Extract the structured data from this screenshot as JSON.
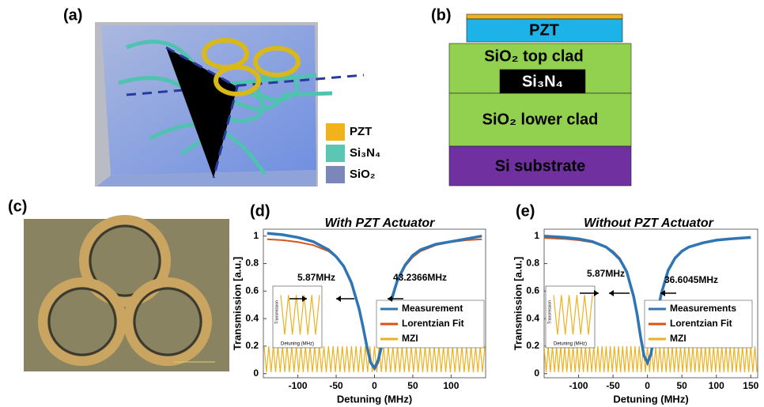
{
  "panels": {
    "a": {
      "label": "(a)",
      "legend": [
        "PZT",
        "Si₃N₄",
        "SiO₂"
      ]
    },
    "b": {
      "label": "(b)",
      "layers": [
        "PZT",
        "SiO₂ top clad",
        "Si₃N₄",
        "SiO₂ lower clad",
        "Si substrate"
      ]
    },
    "c": {
      "label": "(c)"
    }
  },
  "chart_data": [
    {
      "type": "line",
      "label": "(d)",
      "title": "With PZT Actuator",
      "xlabel": "Detuning (MHz)",
      "ylabel": "Transmission [a.u.]",
      "xlim": [
        -145,
        145
      ],
      "ylim": [
        -0.03,
        1.05
      ],
      "xticks": [
        -100,
        -50,
        0,
        50,
        100
      ],
      "yticks": [
        0,
        0.2,
        0.4,
        0.6,
        0.8,
        1
      ],
      "annotations": [
        "5.87MHz",
        "43.2366MHz"
      ],
      "series": [
        {
          "name": "Measurement",
          "color": "#2e75b6",
          "x": [
            -140,
            -120,
            -100,
            -80,
            -60,
            -50,
            -40,
            -30,
            -20,
            -15,
            -10,
            -5,
            0,
            5,
            10,
            15,
            20,
            30,
            40,
            50,
            60,
            80,
            100,
            120,
            140
          ],
          "values": [
            1.02,
            1.01,
            0.99,
            0.96,
            0.9,
            0.85,
            0.78,
            0.66,
            0.47,
            0.34,
            0.2,
            0.08,
            0.04,
            0.1,
            0.22,
            0.36,
            0.5,
            0.68,
            0.79,
            0.86,
            0.9,
            0.94,
            0.96,
            0.98,
            1.0
          ]
        },
        {
          "name": "Lorentzian Fit",
          "color": "#d95319",
          "x": [
            -140,
            -120,
            -100,
            -80,
            -60,
            -50,
            -40,
            -30,
            -20,
            -15,
            -10,
            -5,
            0,
            5,
            10,
            15,
            20,
            30,
            40,
            50,
            60,
            80,
            100,
            120,
            140
          ],
          "values": [
            0.977,
            0.97,
            0.957,
            0.934,
            0.889,
            0.847,
            0.781,
            0.669,
            0.478,
            0.345,
            0.201,
            0.079,
            0.03,
            0.079,
            0.201,
            0.345,
            0.478,
            0.669,
            0.781,
            0.847,
            0.889,
            0.934,
            0.957,
            0.97,
            0.977
          ]
        },
        {
          "name": "MZI",
          "color": "#edb120",
          "x": [
            -144,
            -141,
            -138,
            -135,
            -132,
            -129,
            -126,
            -123,
            -120,
            -117,
            -114,
            -111,
            -108,
            -105,
            -102,
            -99,
            -96,
            -93,
            -90,
            -87,
            -84,
            -81,
            -78,
            -75,
            -72,
            -69,
            -66,
            -63,
            -60,
            -57,
            -54,
            -51,
            -48,
            -45,
            -42,
            -39,
            -36,
            -33,
            -30,
            -27,
            -24,
            -21,
            -18,
            -15,
            -12,
            -9,
            -6,
            -3,
            0,
            3,
            6,
            9,
            12,
            15,
            18,
            21,
            24,
            27,
            30,
            33,
            36,
            39,
            42,
            45,
            48,
            51,
            54,
            57,
            60,
            63,
            66,
            69,
            72,
            75,
            78,
            81,
            84,
            87,
            90,
            93,
            96,
            99,
            102,
            105,
            108,
            111,
            114,
            117,
            120,
            123,
            126,
            129,
            132,
            135,
            138,
            141,
            144
          ],
          "values": [
            0.2,
            0.01,
            0.2,
            0.01,
            0.2,
            0.01,
            0.2,
            0.01,
            0.2,
            0.01,
            0.2,
            0.01,
            0.2,
            0.01,
            0.2,
            0.01,
            0.2,
            0.01,
            0.2,
            0.01,
            0.2,
            0.01,
            0.2,
            0.01,
            0.2,
            0.01,
            0.2,
            0.01,
            0.2,
            0.01,
            0.2,
            0.01,
            0.2,
            0.01,
            0.2,
            0.01,
            0.2,
            0.01,
            0.2,
            0.01,
            0.2,
            0.01,
            0.2,
            0.01,
            0.2,
            0.01,
            0.2,
            0.01,
            0.2,
            0.01,
            0.2,
            0.01,
            0.2,
            0.01,
            0.2,
            0.01,
            0.2,
            0.01,
            0.2,
            0.01,
            0.2,
            0.01,
            0.2,
            0.01,
            0.2,
            0.01,
            0.2,
            0.01,
            0.2,
            0.01,
            0.2,
            0.01,
            0.2,
            0.01,
            0.2,
            0.01,
            0.2,
            0.01,
            0.2,
            0.01,
            0.2,
            0.01,
            0.2,
            0.01,
            0.2,
            0.01,
            0.2,
            0.01,
            0.2,
            0.01,
            0.2,
            0.01,
            0.2,
            0.01,
            0.2,
            0.01,
            0.2
          ]
        }
      ],
      "inset": {
        "xlabel": "Detuning (MHz)",
        "ylabel": "Transmission",
        "x": [
          -15,
          -12,
          -9,
          -6,
          -3,
          0,
          3,
          6,
          9,
          12,
          15
        ],
        "values": [
          0.2,
          0.01,
          0.2,
          0.01,
          0.2,
          0.01,
          0.2,
          0.01,
          0.2,
          0.01,
          0.2
        ]
      }
    },
    {
      "type": "line",
      "label": "(e)",
      "title": "Without PZT Actuator",
      "xlabel": "Detuning (MHz)",
      "ylabel": "Transmission [a.u.]",
      "xlim": [
        -150,
        160
      ],
      "ylim": [
        -0.03,
        1.05
      ],
      "xticks": [
        -100,
        -50,
        0,
        50,
        100,
        150
      ],
      "yticks": [
        0,
        0.2,
        0.4,
        0.6,
        0.8,
        1
      ],
      "annotations": [
        "5.87MHz",
        "36.6045MHz"
      ],
      "series": [
        {
          "name": "Measurements",
          "color": "#2e75b6",
          "x": [
            -150,
            -120,
            -100,
            -80,
            -60,
            -50,
            -40,
            -30,
            -20,
            -15,
            -10,
            -5,
            0,
            5,
            10,
            15,
            20,
            30,
            40,
            50,
            60,
            80,
            100,
            120,
            150
          ],
          "values": [
            1.0,
            0.99,
            0.98,
            0.96,
            0.92,
            0.88,
            0.83,
            0.74,
            0.56,
            0.43,
            0.27,
            0.13,
            0.08,
            0.14,
            0.29,
            0.45,
            0.58,
            0.75,
            0.84,
            0.89,
            0.92,
            0.95,
            0.97,
            0.98,
            0.99
          ]
        },
        {
          "name": "Lorentzian Fit",
          "color": "#d95319",
          "x": [
            -150,
            -120,
            -100,
            -80,
            -60,
            -50,
            -40,
            -30,
            -20,
            -15,
            -10,
            -5,
            0,
            5,
            10,
            15,
            20,
            30,
            40,
            50,
            60,
            80,
            100,
            120,
            150
          ],
          "values": [
            0.986,
            0.979,
            0.97,
            0.954,
            0.921,
            0.89,
            0.839,
            0.748,
            0.575,
            0.444,
            0.284,
            0.135,
            0.07,
            0.135,
            0.284,
            0.444,
            0.575,
            0.748,
            0.839,
            0.89,
            0.921,
            0.954,
            0.97,
            0.979,
            0.986
          ]
        },
        {
          "name": "MZI",
          "color": "#edb120",
          "x": [
            -150,
            -147,
            -144,
            -141,
            -138,
            -135,
            -132,
            -129,
            -126,
            -123,
            -120,
            -117,
            -114,
            -111,
            -108,
            -105,
            -102,
            -99,
            -96,
            -93,
            -90,
            -87,
            -84,
            -81,
            -78,
            -75,
            -72,
            -69,
            -66,
            -63,
            -60,
            -57,
            -54,
            -51,
            -48,
            -45,
            -42,
            -39,
            -36,
            -33,
            -30,
            -27,
            -24,
            -21,
            -18,
            -15,
            -12,
            -9,
            -6,
            -3,
            0,
            3,
            6,
            9,
            12,
            15,
            18,
            21,
            24,
            27,
            30,
            33,
            36,
            39,
            42,
            45,
            48,
            51,
            54,
            57,
            60,
            63,
            66,
            69,
            72,
            75,
            78,
            81,
            84,
            87,
            90,
            93,
            96,
            99,
            102,
            105,
            108,
            111,
            114,
            117,
            120,
            123,
            126,
            129,
            132,
            135,
            138,
            141,
            144,
            147,
            150,
            153,
            156,
            159
          ],
          "values": [
            0.2,
            0.01,
            0.2,
            0.01,
            0.2,
            0.01,
            0.2,
            0.01,
            0.2,
            0.01,
            0.2,
            0.01,
            0.2,
            0.01,
            0.2,
            0.01,
            0.2,
            0.01,
            0.2,
            0.01,
            0.2,
            0.01,
            0.2,
            0.01,
            0.2,
            0.01,
            0.2,
            0.01,
            0.2,
            0.01,
            0.2,
            0.01,
            0.2,
            0.01,
            0.2,
            0.01,
            0.2,
            0.01,
            0.2,
            0.01,
            0.2,
            0.01,
            0.2,
            0.01,
            0.2,
            0.01,
            0.2,
            0.01,
            0.2,
            0.01,
            0.2,
            0.01,
            0.2,
            0.01,
            0.2,
            0.01,
            0.2,
            0.01,
            0.2,
            0.01,
            0.2,
            0.01,
            0.2,
            0.01,
            0.2,
            0.01,
            0.2,
            0.01,
            0.2,
            0.01,
            0.2,
            0.01,
            0.2,
            0.01,
            0.2,
            0.01,
            0.2,
            0.01,
            0.2,
            0.01,
            0.2,
            0.01,
            0.2,
            0.01,
            0.2,
            0.01,
            0.2,
            0.01,
            0.2,
            0.01,
            0.2,
            0.01,
            0.2,
            0.01,
            0.2,
            0.01,
            0.2,
            0.01,
            0.2,
            0.01,
            0.2,
            0.01,
            0.2,
            0.01
          ]
        }
      ],
      "inset": {
        "xlabel": "Detuning (MHz)",
        "ylabel": "Transmission",
        "x": [
          -15,
          -12,
          -9,
          -6,
          -3,
          0,
          3,
          6,
          9,
          12,
          15
        ],
        "values": [
          0.2,
          0.01,
          0.2,
          0.01,
          0.2,
          0.01,
          0.2,
          0.01,
          0.2,
          0.01,
          0.2
        ]
      }
    }
  ]
}
